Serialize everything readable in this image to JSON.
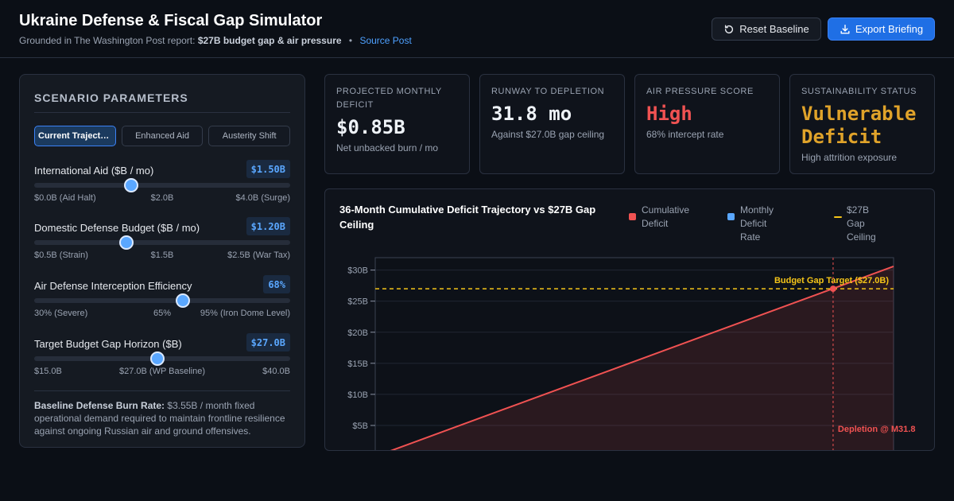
{
  "header": {
    "title": "Ukraine Defense & Fiscal Gap Simulator",
    "subtitle_prefix": "Grounded in The Washington Post report:",
    "subtitle_bold": "$27B budget gap & air pressure",
    "separator": "•",
    "source_link": "Source Post",
    "reset_label": "Reset Baseline",
    "export_label": "Export Briefing"
  },
  "panel": {
    "title": "SCENARIO PARAMETERS",
    "tabs": [
      {
        "label": "Current Trajectory",
        "active": true
      },
      {
        "label": "Enhanced Aid",
        "active": false
      },
      {
        "label": "Austerity Shift",
        "active": false
      }
    ],
    "sliders": [
      {
        "label": "International Aid ($B / mo)",
        "value": "$1.50B",
        "position": 0.38,
        "ticks": [
          "$0.0B (Aid Halt)",
          "$2.0B",
          "$4.0B (Surge)"
        ]
      },
      {
        "label": "Domestic Defense Budget ($B / mo)",
        "value": "$1.20B",
        "position": 0.36,
        "ticks": [
          "$0.5B (Strain)",
          "$1.5B",
          "$2.5B (War Tax)"
        ]
      },
      {
        "label": "Air Defense Interception Efficiency",
        "value": "68%",
        "position": 0.58,
        "ticks": [
          "30% (Severe)",
          "65%",
          "95% (Iron Dome Level)"
        ]
      },
      {
        "label": "Target Budget Gap Horizon ($B)",
        "value": "$27.0B",
        "position": 0.48,
        "ticks": [
          "$15.0B",
          "$27.0B (WP Baseline)",
          "$40.0B"
        ]
      }
    ],
    "note_bold": "Baseline Defense Burn Rate:",
    "note_text": "$3.55B / month fixed operational demand required to maintain frontline resilience against ongoing Russian air and ground offensives."
  },
  "kpis": [
    {
      "label": "PROJECTED MONTHLY DEFICIT",
      "value": "$0.85B",
      "sub": "Net unbacked burn / mo",
      "color": "#eef2f7"
    },
    {
      "label": "RUNWAY TO DEPLETION",
      "value": "31.8 mo",
      "sub": "Against $27.0B gap ceiling",
      "color": "#eef2f7"
    },
    {
      "label": "AIR PRESSURE SCORE",
      "value": "High",
      "sub": "68% intercept rate",
      "color": "#f05252"
    },
    {
      "label": "SUSTAINABILITY STATUS",
      "value": "Vulnerable Deficit",
      "sub": "High attrition exposure",
      "color": "#e0a32a"
    }
  ],
  "chart": {
    "title": "36-Month Cumulative Deficit Trajectory vs $27B Gap Ceiling",
    "legend": [
      {
        "label": "Cumulative Deficit",
        "color": "#f05252"
      },
      {
        "label": "Monthly Deficit Rate",
        "color": "#5aa7ff"
      },
      {
        "label": "$27B Gap Ceiling",
        "color": "#f5c518"
      }
    ],
    "ceiling_label": "Budget Gap Target ($27.0B)",
    "depletion_label": "Depletion @ M31.8"
  },
  "chart_data": {
    "type": "line",
    "title": "36-Month Cumulative Deficit Trajectory vs $27B Gap Ceiling",
    "x_range": [
      0,
      36
    ],
    "ylim": [
      0,
      32
    ],
    "yticks": [
      5,
      10,
      15,
      20,
      25,
      30
    ],
    "ytick_labels": [
      "$5B",
      "$10B",
      "$15B",
      "$20B",
      "$25B",
      "$30B"
    ],
    "series": [
      {
        "name": "Cumulative Deficit",
        "x": [
          0,
          36
        ],
        "y": [
          0,
          30.6
        ]
      }
    ],
    "ceiling": 27,
    "depletion_month": 31.8,
    "grid": true,
    "legend_position": "top-right"
  }
}
